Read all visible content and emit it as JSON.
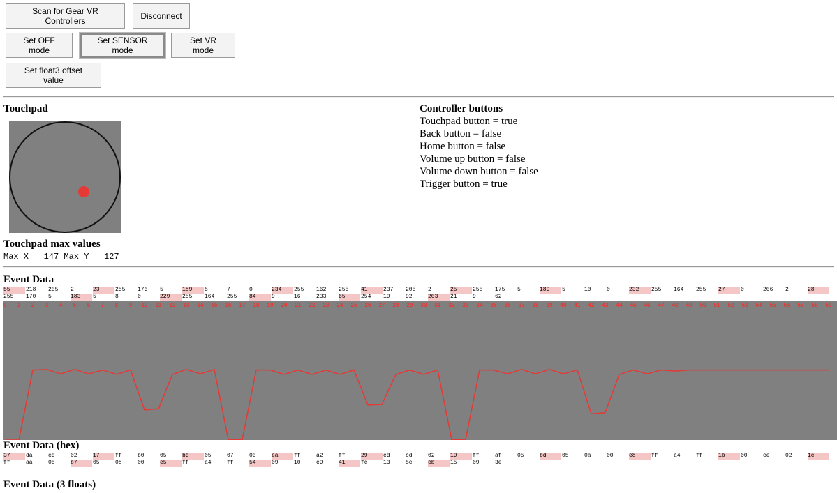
{
  "buttons": [
    "Scan for Gear VR Controllers",
    "Disconnect",
    "Set OFF mode",
    "Set SENSOR mode",
    "Set VR mode",
    "Set float3 offset value"
  ],
  "touchpad": {
    "title": "Touchpad"
  },
  "controller_buttons": {
    "title": "Controller buttons",
    "lines": [
      "Touchpad button = true",
      "Back button = false",
      "Home button = false",
      "Volume up button = false",
      "Volume down button = false",
      "Trigger button = true"
    ]
  },
  "touchpad_max": {
    "title": "Touchpad max values",
    "text": "Max X = 147 Max Y = 127"
  },
  "event_data": {
    "title": "Event Data",
    "bytes": [
      55,
      218,
      205,
      2,
      23,
      255,
      176,
      5,
      189,
      5,
      7,
      0,
      234,
      255,
      162,
      255,
      41,
      237,
      205,
      2,
      25,
      255,
      175,
      5,
      189,
      5,
      10,
      0,
      232,
      255,
      164,
      255,
      27,
      0,
      206,
      2,
      28,
      255,
      170,
      5,
      183,
      5,
      8,
      0,
      229,
      255,
      164,
      255,
      84,
      9,
      16,
      233,
      65,
      254,
      19,
      92,
      203,
      21,
      9,
      62
    ]
  },
  "chart_data": {
    "type": "line",
    "color": "#e53935",
    "x": [
      0,
      1,
      2,
      3,
      4,
      5,
      6,
      7,
      8,
      9,
      10,
      11,
      12,
      13,
      14,
      15,
      16,
      17,
      18,
      19,
      20,
      21,
      22,
      23,
      24,
      25,
      26,
      27,
      28,
      29,
      30,
      31,
      32,
      33,
      34,
      35,
      36,
      37,
      38,
      39,
      40,
      41,
      42,
      43,
      44,
      45,
      46,
      47,
      48,
      49,
      50,
      51,
      52,
      53,
      54,
      55,
      56,
      57,
      58,
      59
    ],
    "values": [
      0,
      0,
      128,
      129,
      121,
      129,
      121,
      128,
      120,
      128,
      55,
      57,
      120,
      129,
      121,
      129,
      1,
      1,
      128,
      128,
      120,
      128,
      120,
      128,
      120,
      128,
      64,
      65,
      120,
      128,
      120,
      128,
      1,
      1,
      128,
      128,
      121,
      129,
      121,
      129,
      121,
      128,
      48,
      50,
      120,
      128,
      121,
      128,
      126,
      128,
      128,
      128,
      128,
      128,
      128,
      128,
      128,
      128,
      128,
      128
    ],
    "ylim": [
      0,
      255
    ]
  },
  "event_data_hex": {
    "title": "Event Data (hex)",
    "bytes": [
      "37",
      "da",
      "cd",
      "02",
      "17",
      "ff",
      "b0",
      "05",
      "bd",
      "05",
      "07",
      "00",
      "ea",
      "ff",
      "a2",
      "ff",
      "29",
      "ed",
      "cd",
      "02",
      "19",
      "ff",
      "af",
      "05",
      "bd",
      "05",
      "0a",
      "00",
      "e8",
      "ff",
      "a4",
      "ff",
      "1b",
      "00",
      "ce",
      "02",
      "1c",
      "ff",
      "aa",
      "05",
      "b7",
      "05",
      "08",
      "00",
      "e5",
      "ff",
      "a4",
      "ff",
      "54",
      "09",
      "10",
      "e9",
      "41",
      "fe",
      "13",
      "5c",
      "cb",
      "15",
      "09",
      "3e"
    ]
  },
  "event_data_floats": {
    "title": "Event Data (3 floats)"
  }
}
